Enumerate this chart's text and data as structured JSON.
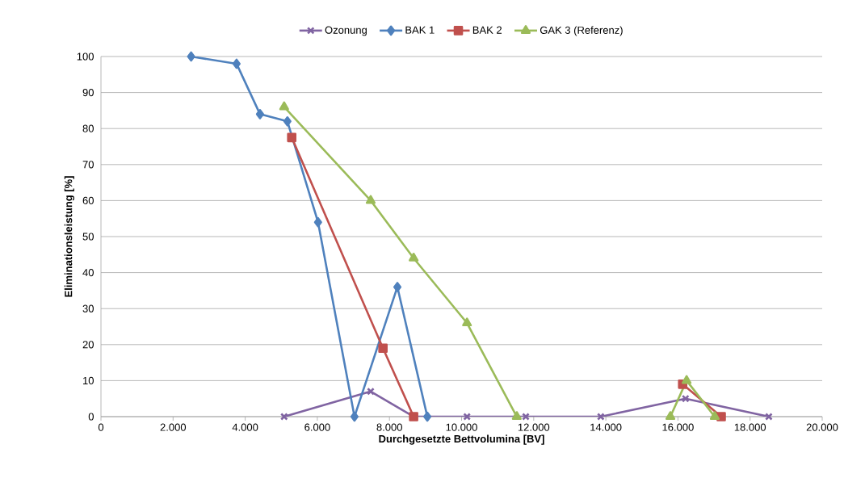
{
  "chart_data": {
    "type": "line",
    "xlabel": "Durchgesetzte Bettvolumina  [BV]",
    "ylabel": "Eliminationsleistung [%]",
    "xlim": [
      0,
      20000
    ],
    "ylim": [
      0,
      100
    ],
    "xticks": [
      {
        "value": 0,
        "label": "0"
      },
      {
        "value": 2000,
        "label": "2.000"
      },
      {
        "value": 4000,
        "label": "4.000"
      },
      {
        "value": 6000,
        "label": "6.000"
      },
      {
        "value": 8000,
        "label": "8.000"
      },
      {
        "value": 10000,
        "label": "10.000"
      },
      {
        "value": 12000,
        "label": "12.000"
      },
      {
        "value": 14000,
        "label": "14.000"
      },
      {
        "value": 16000,
        "label": "16.000"
      },
      {
        "value": 18000,
        "label": "18.000"
      },
      {
        "value": 20000,
        "label": "20.000"
      }
    ],
    "yticks": [
      0,
      10,
      20,
      30,
      40,
      50,
      60,
      70,
      80,
      90,
      100
    ],
    "grid": "y",
    "legend": "top",
    "line_style": "solid",
    "series": [
      {
        "name": "Ozonung",
        "color": "#8064a2",
        "marker": "cross",
        "x": [
          5080,
          7480,
          8670,
          10150,
          11780,
          13860,
          16210,
          18520
        ],
        "values": [
          0,
          7,
          0,
          0,
          0,
          0,
          5,
          0
        ]
      },
      {
        "name": "BAK 1",
        "color": "#4f81bd",
        "marker": "diamond",
        "x": [
          2500,
          3760,
          4410,
          5170,
          6020,
          7030,
          8220,
          9050
        ],
        "values": [
          100,
          98,
          84,
          82,
          54,
          0,
          36,
          0
        ]
      },
      {
        "name": "BAK 2",
        "color": "#c0504d",
        "marker": "square",
        "x": [
          5290,
          7820,
          8670,
          12000,
          16130,
          17200
        ],
        "values": [
          77.5,
          19,
          0,
          null,
          9,
          0
        ]
      },
      {
        "name": "GAK 3 (Referenz)",
        "color": "#9bbb59",
        "marker": "triangle",
        "x": [
          5080,
          7480,
          8670,
          10150,
          11530,
          13000,
          15790,
          16240,
          17020
        ],
        "values": [
          86,
          60,
          44,
          26,
          0,
          null,
          0,
          10,
          0
        ]
      }
    ]
  }
}
